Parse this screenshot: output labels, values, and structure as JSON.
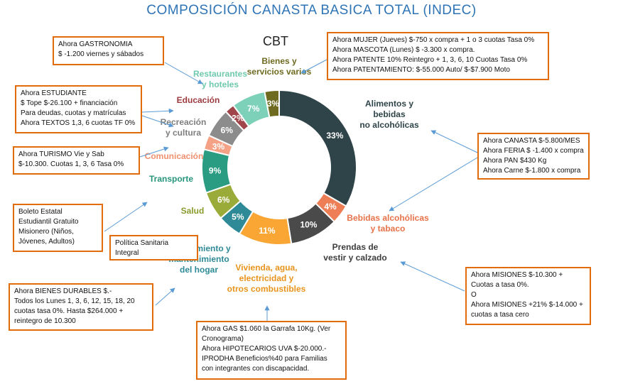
{
  "header": {
    "title": "COMPOSICIÓN CANASTA BASICA TOTAL (INDEC)"
  },
  "chart_data": {
    "type": "pie",
    "title": "CBT",
    "categories": [
      "Alimentos y bebidas no alcohólicas",
      "Bebidas alcohólicas y tabaco",
      "Prendas de vestir y calzado",
      "Vivienda, agua, electricidad y otros combustibles",
      "Equipamiento y mantenimiento del hogar",
      "Salud",
      "Transporte",
      "Comunicación",
      "Recreación y cultura",
      "Educación",
      "Restaurantes y hoteles",
      "Bienes y servicios varios"
    ],
    "values": [
      33,
      4,
      10,
      11,
      5,
      6,
      9,
      3,
      6,
      2,
      7,
      3
    ],
    "value_labels": [
      "33%",
      "4%",
      "10%",
      "11%",
      "5%",
      "6%",
      "9%",
      "3%",
      "6%",
      "2%",
      "7%",
      "3%"
    ],
    "colors": [
      "#2F4449",
      "#EE7E55",
      "#4A4A4A",
      "#FAA635",
      "#2E8A96",
      "#9AAB3A",
      "#2A9C82",
      "#F4A185",
      "#8C8C8C",
      "#A0464A",
      "#7DD1B8",
      "#6E6A20"
    ],
    "label_colors": [
      "#2F4449",
      "#E8734A",
      "#3D3D3D",
      "#E8941C",
      "#2E8A96",
      "#8A9B2C",
      "#27957B",
      "#F0916F",
      "#7F7F7F",
      "#9B3A3E",
      "#6FC9AE",
      "#6E6A20"
    ]
  },
  "chart_labels": [
    [
      "Alimentos y",
      "bebidas",
      "no alcohólicas"
    ],
    [
      "Bebidas alcohólicas",
      "y tabaco"
    ],
    [
      "Prendas de",
      "vestir y calzado"
    ],
    [
      "Vivienda, agua,",
      "electricidad y",
      "otros combustibles"
    ],
    [
      "Equipamiento y",
      "mantenimiento",
      "del hogar"
    ],
    [
      "Salud"
    ],
    [
      "Transporte"
    ],
    [
      "Comunicación"
    ],
    [
      "Recreación",
      "y cultura"
    ],
    [
      "Educación"
    ],
    [
      "Restaurantes",
      "y hoteles"
    ],
    [
      "Bienes y",
      "servicios varios"
    ]
  ],
  "boxes": {
    "gastronomia": "Ahora GASTRONOMIA\n$ -1.200 viernes y sábados",
    "estudiante": "Ahora ESTUDIANTE\n$ Tope $-26.100 + financiación\nPara deudas,  cuotas y matrículas\nAhora TEXTOS  1,3, 6 cuotas TF 0%",
    "turismo": "Ahora TURISMO  Vie y Sab\n$-10.300. Cuotas 1, 3, 6 Tasa  0%",
    "boleto": "Boleto Estatal\nEstudiantil Gratuito\nMisionero (Niños,\nJóvenes, Adultos)",
    "politica": "Política Sanitaria\nIntegral",
    "bienes_durables": "Ahora BIENES DURABLES $.-\nTodos los Lunes 1, 3, 6, 12, 15, 18, 20\ncuotas tasa 0%. Hasta $264.000 +\nreintegro de 10.300",
    "gas": "Ahora GAS $1.060 la Garrafa 10Kg. (Ver\nCronograma)\nAhora HIPOTECARIOS  UVA $-20.000.-\nIPRODHA Beneficios%40 para Familias\ncon integrantes con discapacidad.",
    "misiones": "Ahora MISIONES  $-10.300 +\nCuotas a tasa 0%.\nO\nAhora MISIONES  +21% $-14.000 +\ncuotas a tasa cero",
    "canasta": "Ahora CANASTA  $-5.800/MES\nAhora FERIA $ -1.400 x compra\nAhora PAN $430 Kg\nAhora Carne $-1.800 x compra",
    "mujer": "Ahora MUJER  (Jueves)  $-750 x compra + 1 o 3 cuotas Tasa 0%\nAhora MASCOTA  (Lunes) $ -3.300 x compra.\nAhora PATENTE  10% Reintegro + 1, 3, 6, 10 Cuotas Tasa  0%\nAhora PATENTAMIENTO:   $-55.000 Auto/ $-$7.900 Moto"
  }
}
